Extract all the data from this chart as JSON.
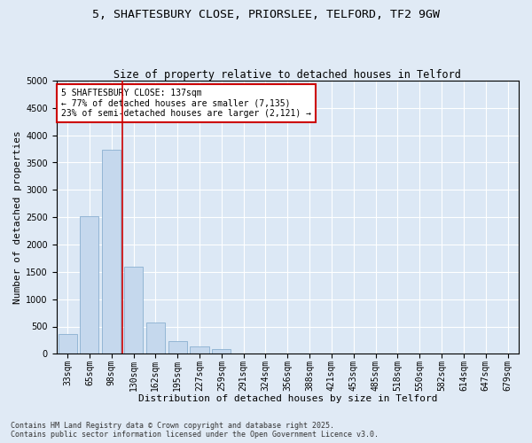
{
  "title_line1": "5, SHAFTESBURY CLOSE, PRIORSLEE, TELFORD, TF2 9GW",
  "title_line2": "Size of property relative to detached houses in Telford",
  "xlabel": "Distribution of detached houses by size in Telford",
  "ylabel": "Number of detached properties",
  "categories": [
    "33sqm",
    "65sqm",
    "98sqm",
    "130sqm",
    "162sqm",
    "195sqm",
    "227sqm",
    "259sqm",
    "291sqm",
    "324sqm",
    "356sqm",
    "388sqm",
    "421sqm",
    "453sqm",
    "485sqm",
    "518sqm",
    "550sqm",
    "582sqm",
    "614sqm",
    "647sqm",
    "679sqm"
  ],
  "values": [
    370,
    2520,
    3730,
    1600,
    570,
    230,
    135,
    80,
    0,
    0,
    0,
    0,
    0,
    0,
    0,
    0,
    0,
    0,
    0,
    0,
    0
  ],
  "bar_color": "#c5d8ed",
  "bar_edge_color": "#8ab0d0",
  "vline_color": "#cc0000",
  "annotation_text": "5 SHAFTESBURY CLOSE: 137sqm\n← 77% of detached houses are smaller (7,135)\n23% of semi-detached houses are larger (2,121) →",
  "annotation_box_color": "#ffffff",
  "annotation_box_edge": "#cc0000",
  "ylim": [
    0,
    5000
  ],
  "yticks": [
    0,
    500,
    1000,
    1500,
    2000,
    2500,
    3000,
    3500,
    4000,
    4500,
    5000
  ],
  "background_color": "#e0eaf5",
  "plot_bg_color": "#dce8f5",
  "footer_line1": "Contains HM Land Registry data © Crown copyright and database right 2025.",
  "footer_line2": "Contains public sector information licensed under the Open Government Licence v3.0.",
  "title_fontsize": 9.5,
  "subtitle_fontsize": 8.5,
  "tick_fontsize": 7,
  "label_fontsize": 8,
  "annotation_fontsize": 7,
  "footer_fontsize": 6
}
